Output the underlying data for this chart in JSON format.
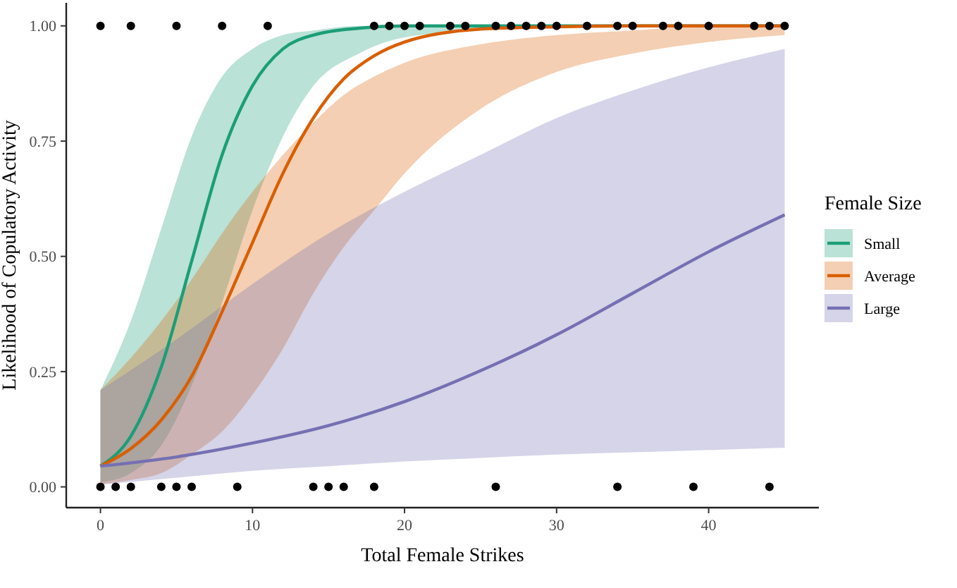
{
  "chart_data": {
    "type": "line",
    "xlabel": "Total Female Strikes",
    "ylabel": "Likelihood of Copulatory Activity",
    "legend_title": "Female Size",
    "legend": "right",
    "grid": false,
    "xlim": [
      -2.25,
      47.25
    ],
    "ylim": [
      -0.045,
      1.05
    ],
    "xticks": [
      0,
      10,
      20,
      30,
      40
    ],
    "yticks": [
      {
        "value": 0,
        "label": "0.00"
      },
      {
        "value": 0.25,
        "label": "0.25"
      },
      {
        "value": 0.5,
        "label": "0.50"
      },
      {
        "value": 0.75,
        "label": "0.75"
      },
      {
        "value": 1,
        "label": "1.00"
      }
    ],
    "series": [
      {
        "name": "Small",
        "color": "#1b9e77",
        "x": [
          0,
          2,
          4,
          6,
          8,
          10,
          12,
          14,
          17,
          20,
          25,
          30,
          35,
          40,
          45
        ],
        "values": [
          0.045,
          0.11,
          0.26,
          0.49,
          0.72,
          0.87,
          0.95,
          0.98,
          0.995,
          1,
          1,
          1,
          1,
          1,
          1
        ],
        "lower": [
          0.01,
          0.03,
          0.09,
          0.22,
          0.4,
          0.6,
          0.76,
          0.87,
          0.94,
          0.975,
          0.99,
          1,
          1,
          1,
          1
        ],
        "upper": [
          0.21,
          0.36,
          0.56,
          0.76,
          0.89,
          0.95,
          0.98,
          0.99,
          1,
          1,
          1,
          1,
          1,
          1,
          1
        ]
      },
      {
        "name": "Average",
        "color": "#d95f02",
        "x": [
          0,
          2,
          4,
          6,
          8,
          10,
          12,
          14,
          16,
          18,
          20,
          25,
          30,
          35,
          40,
          45
        ],
        "values": [
          0.045,
          0.083,
          0.145,
          0.24,
          0.38,
          0.53,
          0.68,
          0.8,
          0.885,
          0.935,
          0.965,
          0.993,
          0.998,
          1,
          1,
          1
        ],
        "lower": [
          0.005,
          0.015,
          0.03,
          0.07,
          0.12,
          0.2,
          0.3,
          0.42,
          0.52,
          0.6,
          0.68,
          0.82,
          0.9,
          0.94,
          0.965,
          0.98
        ],
        "upper": [
          0.21,
          0.28,
          0.36,
          0.45,
          0.55,
          0.64,
          0.72,
          0.79,
          0.85,
          0.89,
          0.92,
          0.96,
          0.98,
          0.99,
          1,
          1
        ]
      },
      {
        "name": "Large",
        "color": "#7570b3",
        "x": [
          0,
          5,
          10,
          15,
          20,
          25,
          30,
          35,
          40,
          45
        ],
        "values": [
          0.045,
          0.065,
          0.095,
          0.133,
          0.185,
          0.252,
          0.33,
          0.42,
          0.51,
          0.59
        ],
        "lower": [
          0.005,
          0.02,
          0.035,
          0.045,
          0.055,
          0.063,
          0.07,
          0.075,
          0.08,
          0.085
        ],
        "upper": [
          0.21,
          0.32,
          0.44,
          0.55,
          0.64,
          0.72,
          0.8,
          0.86,
          0.91,
          0.95
        ]
      },
      {
        "type": "scatter",
        "color": "#000000",
        "x": [
          0,
          2,
          5,
          8,
          11,
          18,
          19,
          20,
          21,
          23,
          24,
          26,
          27,
          28,
          29,
          30,
          32,
          34,
          35,
          37,
          38,
          40,
          43,
          44,
          45,
          0,
          1,
          2,
          4,
          5,
          6,
          9,
          14,
          15,
          16,
          18,
          26,
          34,
          39,
          44
        ],
        "values": [
          1,
          1,
          1,
          1,
          1,
          1,
          1,
          1,
          1,
          1,
          1,
          1,
          1,
          1,
          1,
          1,
          1,
          1,
          1,
          1,
          1,
          1,
          1,
          1,
          1,
          0,
          0,
          0,
          0,
          0,
          0,
          0,
          0,
          0,
          0,
          0,
          0,
          0,
          0,
          0
        ]
      }
    ]
  }
}
